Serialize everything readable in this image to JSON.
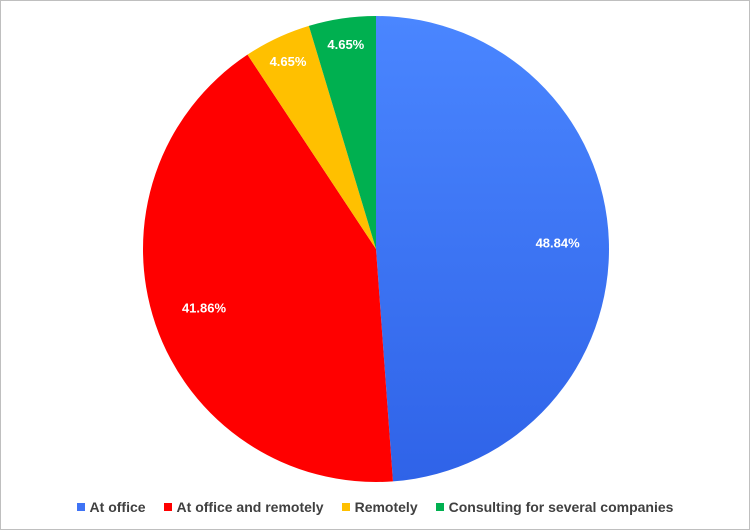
{
  "chart_data": {
    "type": "pie",
    "title": "",
    "categories": [
      "At office",
      "At office and remotely",
      "Remotely",
      "Consulting for several companies"
    ],
    "values": [
      48.84,
      41.86,
      4.65,
      4.65
    ],
    "labels": [
      "48.84%",
      "41.86%",
      "4.65%",
      "4.65%"
    ],
    "colors": [
      "#3f73f5",
      "#ff0000",
      "#ffc000",
      "#00b050"
    ],
    "start_angle": "12 o'clock",
    "direction": "clockwise",
    "legend_position": "bottom"
  }
}
